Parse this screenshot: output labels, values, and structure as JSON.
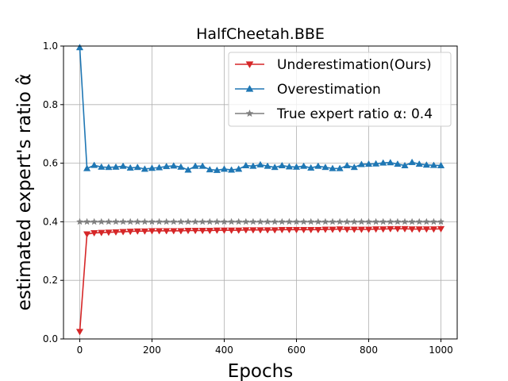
{
  "chart_data": {
    "type": "line",
    "title": "HalfCheetah.BBE",
    "xlabel": "Epochs",
    "ylabel": "estimated expert's ratio α̂",
    "xlim": [
      -45,
      1045
    ],
    "ylim": [
      0.0,
      1.0
    ],
    "xticks": [
      0,
      200,
      400,
      600,
      800,
      1000
    ],
    "yticks": [
      0.0,
      0.2,
      0.4,
      0.6,
      0.8,
      1.0
    ],
    "xtick_labels": [
      "0",
      "200",
      "400",
      "600",
      "800",
      "1000"
    ],
    "ytick_labels": [
      "0.0",
      "0.2",
      "0.4",
      "0.6",
      "0.8",
      "1.0"
    ],
    "grid": true,
    "legend_position": "top-right",
    "x": [
      0,
      20,
      40,
      60,
      80,
      100,
      120,
      140,
      160,
      180,
      200,
      220,
      240,
      260,
      280,
      300,
      320,
      340,
      360,
      380,
      400,
      420,
      440,
      460,
      480,
      500,
      520,
      540,
      560,
      580,
      600,
      620,
      640,
      660,
      680,
      700,
      720,
      740,
      760,
      780,
      800,
      820,
      840,
      860,
      880,
      900,
      920,
      940,
      960,
      980,
      1000
    ],
    "series": [
      {
        "name": "Underestimation(Ours)",
        "color": "#d62728",
        "marker": "triangle-down",
        "values": [
          0.025,
          0.358,
          0.362,
          0.363,
          0.364,
          0.365,
          0.366,
          0.367,
          0.368,
          0.368,
          0.369,
          0.369,
          0.369,
          0.369,
          0.369,
          0.37,
          0.37,
          0.37,
          0.37,
          0.371,
          0.371,
          0.371,
          0.371,
          0.372,
          0.372,
          0.372,
          0.372,
          0.372,
          0.373,
          0.373,
          0.373,
          0.373,
          0.373,
          0.373,
          0.374,
          0.374,
          0.375,
          0.374,
          0.374,
          0.374,
          0.374,
          0.375,
          0.375,
          0.376,
          0.376,
          0.376,
          0.375,
          0.375,
          0.375,
          0.375,
          0.376
        ]
      },
      {
        "name": "Overestimation",
        "color": "#1f77b4",
        "marker": "triangle-up",
        "values": [
          0.995,
          0.582,
          0.593,
          0.587,
          0.586,
          0.587,
          0.59,
          0.584,
          0.586,
          0.58,
          0.583,
          0.585,
          0.589,
          0.591,
          0.587,
          0.577,
          0.59,
          0.59,
          0.578,
          0.576,
          0.58,
          0.577,
          0.58,
          0.592,
          0.59,
          0.595,
          0.59,
          0.586,
          0.592,
          0.588,
          0.587,
          0.59,
          0.584,
          0.59,
          0.586,
          0.582,
          0.582,
          0.592,
          0.586,
          0.596,
          0.597,
          0.598,
          0.601,
          0.602,
          0.597,
          0.592,
          0.603,
          0.597,
          0.594,
          0.593,
          0.592
        ]
      },
      {
        "name": "True expert ratio α: 0.4",
        "color": "#7f7f7f",
        "marker": "star",
        "values": [
          0.4,
          0.4,
          0.4,
          0.4,
          0.4,
          0.4,
          0.4,
          0.4,
          0.4,
          0.4,
          0.4,
          0.4,
          0.4,
          0.4,
          0.4,
          0.4,
          0.4,
          0.4,
          0.4,
          0.4,
          0.4,
          0.4,
          0.4,
          0.4,
          0.4,
          0.4,
          0.4,
          0.4,
          0.4,
          0.4,
          0.4,
          0.4,
          0.4,
          0.4,
          0.4,
          0.4,
          0.4,
          0.4,
          0.4,
          0.4,
          0.4,
          0.4,
          0.4,
          0.4,
          0.4,
          0.4,
          0.4,
          0.4,
          0.4,
          0.4,
          0.4
        ]
      }
    ]
  }
}
